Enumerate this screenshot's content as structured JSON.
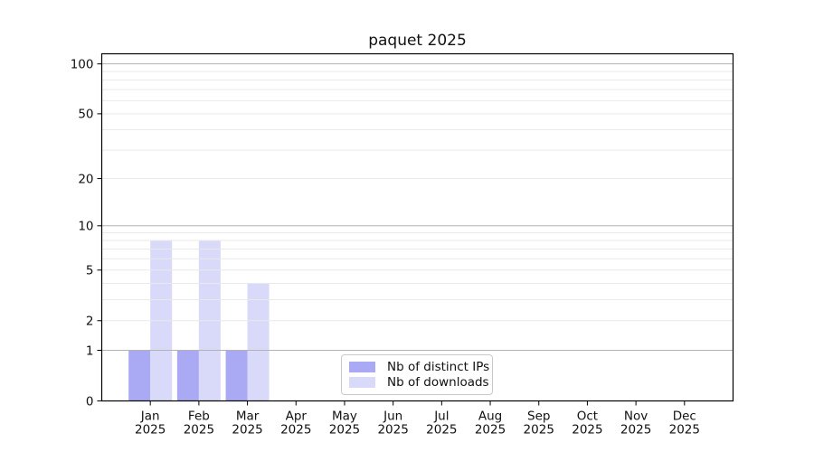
{
  "chart_data": {
    "type": "bar",
    "title": "paquet 2025",
    "categories": [
      "Jan",
      "Feb",
      "Mar",
      "Apr",
      "May",
      "Jun",
      "Jul",
      "Aug",
      "Sep",
      "Oct",
      "Nov",
      "Dec"
    ],
    "x_year_line": "2025",
    "series": [
      {
        "name": "Nb of distinct IPs",
        "color": "#a9a9f4",
        "values": [
          1,
          1,
          1,
          0,
          0,
          0,
          0,
          0,
          0,
          0,
          0,
          0
        ]
      },
      {
        "name": "Nb of downloads",
        "color": "#d9d9f9",
        "values": [
          8,
          8,
          4,
          0,
          0,
          0,
          0,
          0,
          0,
          0,
          0,
          0
        ]
      }
    ],
    "yscale": "log1p",
    "ylim": [
      0,
      115
    ],
    "yticks": [
      0,
      1,
      2,
      5,
      10,
      20,
      50,
      100
    ],
    "grid": {
      "major": [
        1,
        10,
        100
      ],
      "minor": [
        2,
        3,
        4,
        5,
        6,
        7,
        8,
        9,
        20,
        30,
        40,
        50,
        60,
        70,
        80,
        90
      ],
      "major_color": "#b2b2b2",
      "minor_color": "#e9e9e9"
    },
    "legend": {
      "position": "lower center"
    },
    "axis_color": "#000000",
    "text_color": "#111111"
  }
}
